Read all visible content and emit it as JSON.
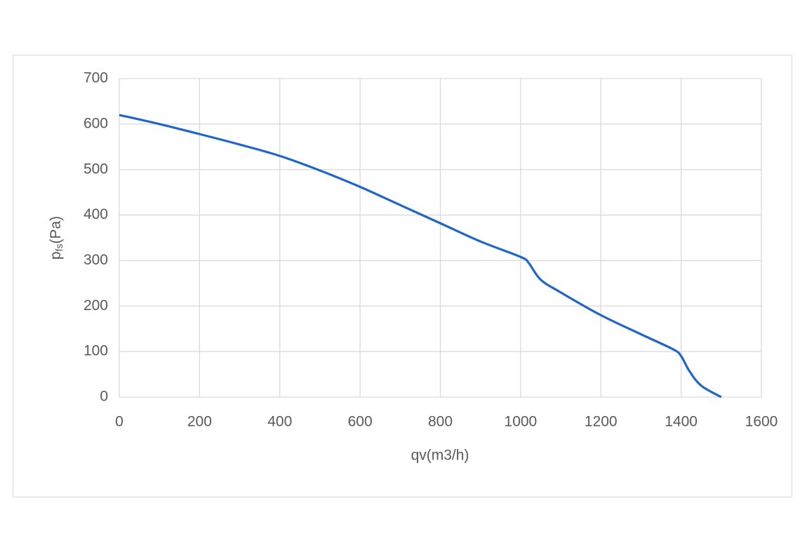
{
  "chart_data": {
    "type": "line",
    "xlabel": "qv(m3/h)",
    "ylabel": "p",
    "ylabel_subscript": "fs",
    "ylabel_suffix": "(Pa)",
    "x": [
      0,
      100,
      200,
      300,
      400,
      500,
      600,
      700,
      800,
      900,
      1000,
      1020,
      1050,
      1100,
      1200,
      1300,
      1380,
      1400,
      1420,
      1450,
      1500
    ],
    "series": [
      {
        "color": "#1f66c8",
        "values": [
          620,
          600,
          578,
          555,
          530,
          498,
          462,
          422,
          382,
          342,
          308,
          295,
          258,
          230,
          180,
          138,
          105,
          90,
          58,
          25,
          0
        ]
      }
    ],
    "xlim": [
      0,
      1600
    ],
    "xticks": [
      0,
      200,
      400,
      600,
      800,
      1000,
      1200,
      1400,
      1600
    ],
    "ylim": [
      0,
      700
    ],
    "yticks": [
      0,
      100,
      200,
      300,
      400,
      500,
      600,
      700
    ],
    "grid": true
  }
}
